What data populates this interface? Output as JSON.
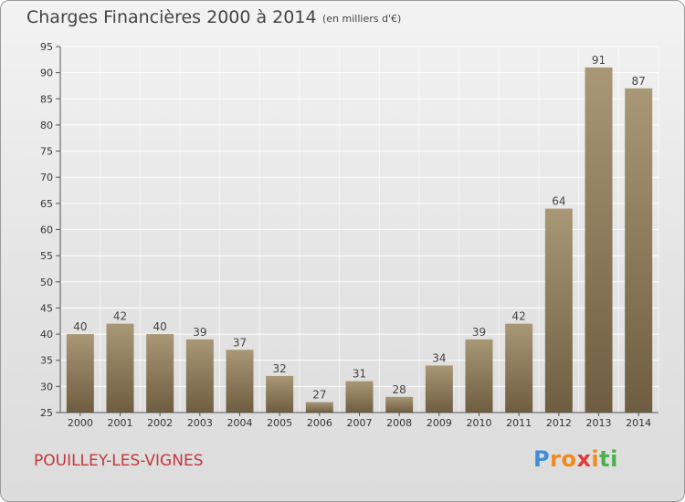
{
  "header": {
    "title": "Charges Financières 2000 à 2014",
    "subtitle": "(en milliers d'€)"
  },
  "footer": {
    "commune": "POUILLEY-LES-VIGNES",
    "logo": {
      "letters": [
        "P",
        "r",
        "o",
        "x",
        "i",
        "t",
        "i"
      ],
      "colors": [
        "#3a8fd8",
        "#f08a1c",
        "#f08a1c",
        "#e03a3a",
        "#f08a1c",
        "#4caf50",
        "#4caf50"
      ]
    }
  },
  "colors": {
    "bar_top": "#a89876",
    "bar_bottom": "#6e5d40",
    "grid": "#ffffff",
    "axis": "#555555"
  },
  "chart_data": {
    "type": "bar",
    "title": "Charges Financières 2000 à 2014",
    "subtitle": "(en milliers d'€)",
    "categories": [
      "2000",
      "2001",
      "2002",
      "2003",
      "2004",
      "2005",
      "2006",
      "2007",
      "2008",
      "2009",
      "2010",
      "2011",
      "2012",
      "2013",
      "2014"
    ],
    "values": [
      40,
      42,
      40,
      39,
      37,
      32,
      27,
      31,
      28,
      34,
      39,
      42,
      64,
      91,
      87
    ],
    "ylim": [
      25,
      95
    ],
    "yticks": [
      25,
      30,
      35,
      40,
      45,
      50,
      55,
      60,
      65,
      70,
      75,
      80,
      85,
      90,
      95
    ],
    "grid": true,
    "xlabel": "",
    "ylabel": ""
  }
}
